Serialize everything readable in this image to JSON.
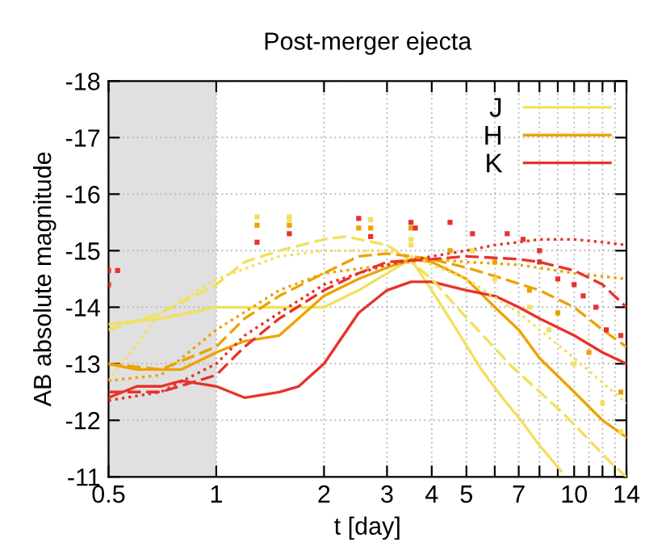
{
  "chart_data": {
    "type": "line",
    "title": "Post-merger ejecta",
    "xlabel": "t [day]",
    "ylabel": "AB absolute magnitude",
    "log": "x",
    "xlim": [
      0.5,
      14
    ],
    "ylim": [
      -11,
      -18
    ],
    "xticks": [
      0.5,
      1,
      2,
      3,
      4,
      5,
      {
        "value": 6,
        "label": null
      },
      7,
      {
        "value": 8,
        "label": null
      },
      {
        "value": 9,
        "label": null
      },
      10,
      {
        "value": 11,
        "label": null
      },
      {
        "value": 12,
        "label": null
      },
      {
        "value": 13,
        "label": null
      },
      14
    ],
    "yticks": [
      -18,
      -17,
      -16,
      -15,
      -14,
      -13,
      -12,
      -11
    ],
    "grid": true,
    "legend": "top right",
    "bands": [
      {
        "axis": "x",
        "from": 0.5,
        "to": 1,
        "color": "#e0e0e0"
      }
    ],
    "series": [
      {
        "name": "J",
        "color": "#f2e05a",
        "line_style": "solid",
        "x": [
          0.5,
          0.7,
          1,
          1.5,
          2,
          2.5,
          3,
          3.5,
          4,
          4.7,
          5.5,
          6.3,
          7.1,
          7.9,
          9.2
        ],
        "values": [
          -13.7,
          -13.8,
          -14.0,
          -14.0,
          -14.0,
          -14.3,
          -14.6,
          -14.85,
          -14.3,
          -13.6,
          -12.9,
          -12.4,
          -12.0,
          -11.6,
          -11.1
        ]
      },
      {
        "name": "H",
        "color": "#eda200",
        "line_style": "solid",
        "x": [
          0.5,
          0.6,
          0.8,
          1,
          1.2,
          1.5,
          2,
          2.5,
          3,
          3.5,
          4,
          5,
          6,
          7,
          8,
          10,
          12,
          14
        ],
        "values": [
          -13.0,
          -12.9,
          -12.9,
          -13.2,
          -13.4,
          -13.5,
          -14.2,
          -14.5,
          -14.7,
          -14.85,
          -14.8,
          -14.5,
          -14.0,
          -13.6,
          -13.1,
          -12.5,
          -12.0,
          -11.7
        ]
      },
      {
        "name": "K",
        "color": "#e8322a",
        "line_style": "solid",
        "x": [
          0.5,
          0.6,
          0.7,
          0.8,
          1,
          1.2,
          1.5,
          1.7,
          2,
          2.5,
          3,
          3.5,
          4,
          5,
          6,
          7,
          8,
          10,
          12,
          14
        ],
        "values": [
          -12.4,
          -12.6,
          -12.6,
          -12.7,
          -12.6,
          -12.4,
          -12.5,
          -12.6,
          -13.0,
          -13.9,
          -14.3,
          -14.45,
          -14.45,
          -14.3,
          -14.2,
          -14.0,
          -13.8,
          -13.5,
          -13.2,
          -13.0
        ]
      },
      {
        "color": "#f2e05a",
        "line_style": "dashed",
        "x": [
          0.5,
          0.7,
          1,
          1.2,
          1.5,
          2,
          2.3,
          3,
          3.35,
          4,
          4.7,
          6.7,
          9.4,
          12.9,
          14
        ],
        "values": [
          -13.6,
          -13.9,
          -14.4,
          -14.8,
          -15.0,
          -15.2,
          -15.25,
          -15.1,
          -14.9,
          -14.5,
          -14.0,
          -12.95,
          -12.1,
          -11.2,
          -11.0
        ]
      },
      {
        "color": "#f2e05a",
        "line_style": "dotted",
        "x": [
          0.5,
          0.7,
          1,
          1.5,
          2,
          3,
          3.5,
          5,
          7,
          10,
          14
        ],
        "values": [
          -12.7,
          -13.9,
          -14.5,
          -14.9,
          -15.0,
          -15.0,
          -14.9,
          -14.5,
          -13.9,
          -13.1,
          -12.3
        ]
      },
      {
        "color": "#eda200",
        "line_style": "dashed",
        "x": [
          0.5,
          0.7,
          1,
          1.2,
          1.5,
          2,
          2.5,
          3,
          3.5,
          4,
          5,
          6,
          8,
          10,
          12,
          14
        ],
        "values": [
          -13.0,
          -12.9,
          -13.3,
          -13.8,
          -14.2,
          -14.6,
          -14.9,
          -14.95,
          -14.9,
          -14.85,
          -14.7,
          -14.55,
          -14.3,
          -14.0,
          -13.6,
          -13.3
        ]
      },
      {
        "color": "#eda200",
        "line_style": "dotted",
        "x": [
          0.5,
          0.7,
          1,
          1.5,
          2,
          3,
          4,
          5,
          7,
          10,
          14
        ],
        "values": [
          -12.7,
          -12.8,
          -13.6,
          -14.3,
          -14.6,
          -14.75,
          -14.85,
          -14.8,
          -14.75,
          -14.6,
          -14.5
        ]
      },
      {
        "color": "#e8322a",
        "line_style": "dashed",
        "x": [
          0.5,
          0.7,
          1,
          1.2,
          1.5,
          2,
          2.5,
          3,
          4,
          5,
          7,
          8,
          10,
          12,
          14
        ],
        "values": [
          -12.5,
          -12.5,
          -12.8,
          -13.3,
          -13.8,
          -14.3,
          -14.6,
          -14.8,
          -14.85,
          -14.9,
          -14.85,
          -14.8,
          -14.65,
          -14.4,
          -14.0
        ]
      },
      {
        "color": "#e8322a",
        "line_style": "dotted",
        "x": [
          0.5,
          0.7,
          1,
          1.2,
          1.5,
          2,
          2.5,
          3,
          4,
          5,
          6,
          7,
          8,
          10,
          12,
          14
        ],
        "values": [
          -12.35,
          -12.5,
          -13.0,
          -13.5,
          -13.9,
          -14.4,
          -14.6,
          -14.75,
          -14.9,
          -15.0,
          -15.1,
          -15.15,
          -15.2,
          -15.2,
          -15.15,
          -15.1
        ]
      },
      {
        "type": "scatter",
        "marker": "square",
        "color": "#f2e05a",
        "x": [
          1.3,
          1.6,
          1.6,
          2.7,
          3.5,
          3.5,
          5.2,
          6,
          7.5,
          8.5,
          10,
          12,
          13.5
        ],
        "values": [
          -15.6,
          -15.6,
          -15.55,
          -15.55,
          -15.2,
          -15.1,
          -15.0,
          -14.5,
          -14.0,
          -13.6,
          -13.0,
          -12.3,
          -11.8
        ]
      },
      {
        "type": "scatter",
        "marker": "square",
        "color": "#eda200",
        "x": [
          1.3,
          1.6,
          2.5,
          2.7,
          3.5,
          4.5,
          6,
          7.5,
          9,
          11,
          13.5
        ],
        "values": [
          -15.45,
          -15.45,
          -15.4,
          -15.4,
          -15.4,
          -15.0,
          -14.8,
          -14.3,
          -13.9,
          -13.2,
          -12.5
        ]
      },
      {
        "type": "scatter",
        "marker": "square",
        "color": "#e8322a",
        "x": [
          0.5,
          0.5,
          0.53,
          1.3,
          1.6,
          2.5,
          2.7,
          3.5,
          3.6,
          4.5,
          5.2,
          6.5,
          7.2,
          8,
          8,
          9,
          10,
          10.6,
          11.5,
          12.3,
          13.5
        ],
        "values": [
          -14.4,
          -14.65,
          -14.65,
          -15.15,
          -15.3,
          -15.57,
          -15.25,
          -15.5,
          -15.4,
          -15.5,
          -15.3,
          -15.3,
          -15.2,
          -15.0,
          -14.8,
          -14.5,
          -14.4,
          -14.2,
          -14.0,
          -13.6,
          -13.5
        ]
      }
    ]
  }
}
